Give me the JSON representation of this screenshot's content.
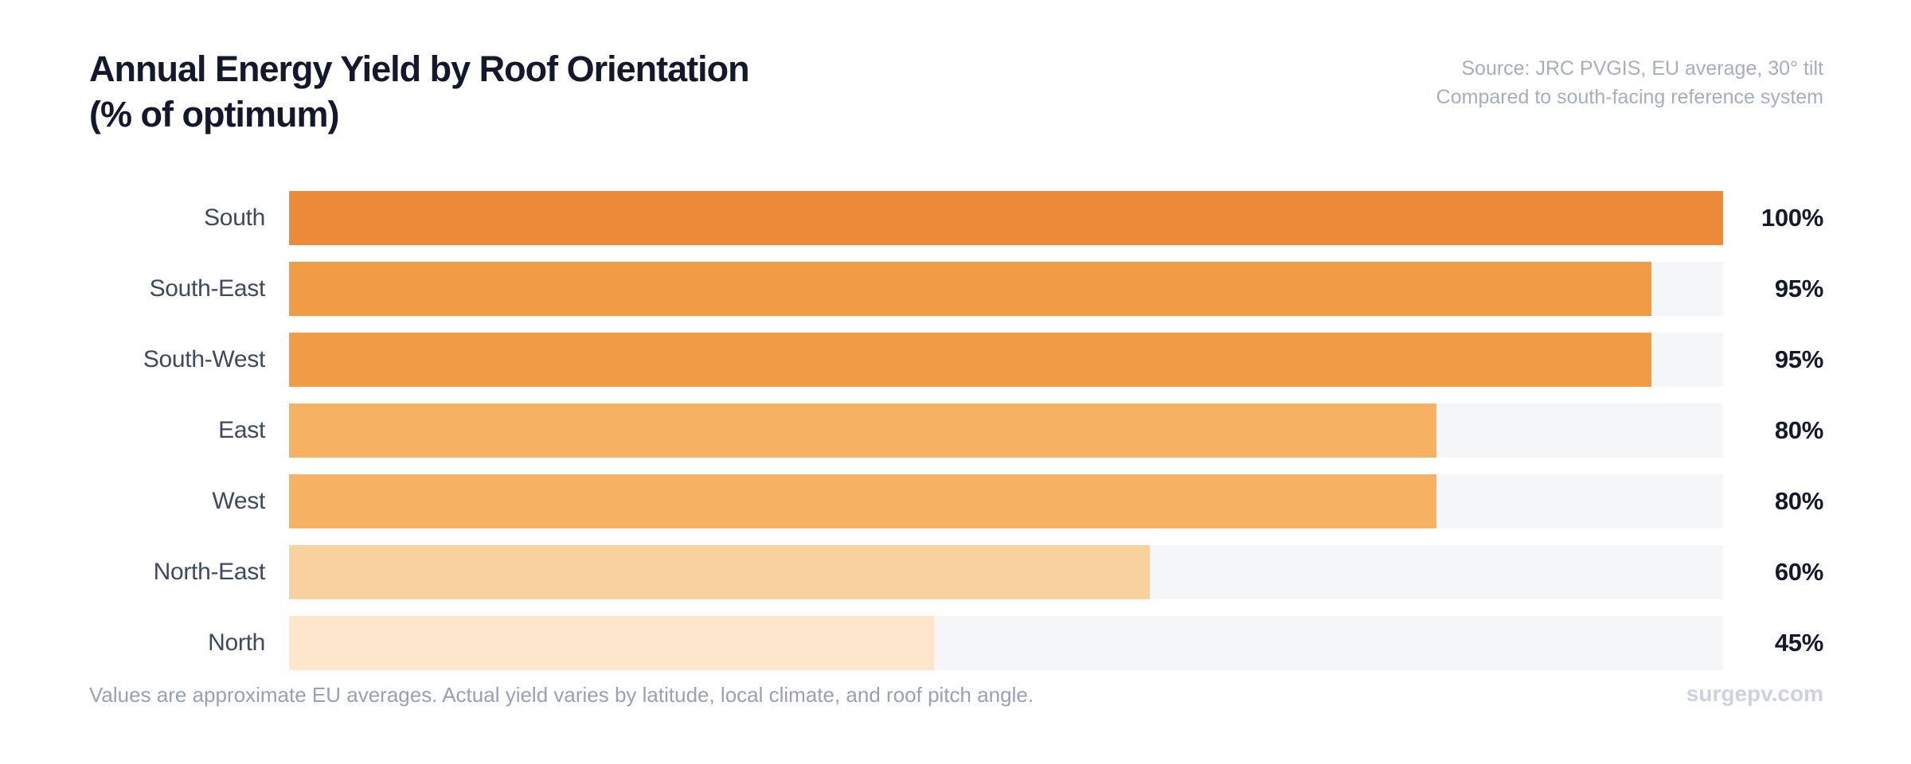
{
  "header": {
    "title_line1": "Annual Energy Yield by Roof Orientation",
    "title_line2": "(% of optimum)",
    "source_line1": "Source: JRC PVGIS, EU average, 30° tilt",
    "source_line2": "Compared to south-facing reference system"
  },
  "chart_data": {
    "type": "bar",
    "orientation": "horizontal",
    "title": "Annual Energy Yield by Roof Orientation (% of optimum)",
    "categories": [
      "South",
      "South-East",
      "South-West",
      "East",
      "West",
      "North-East",
      "North"
    ],
    "values": [
      100,
      95,
      95,
      80,
      80,
      60,
      45
    ],
    "value_labels": [
      "100%",
      "95%",
      "95%",
      "80%",
      "80%",
      "60%",
      "45%"
    ],
    "bar_colors": [
      "#ed8a38",
      "#f29b45",
      "#f29b45",
      "#f6b262",
      "#f6b262",
      "#f8d19c",
      "#fde6c9"
    ],
    "track_color": "#f5f6f8",
    "xlim": [
      0,
      100
    ],
    "grid": false,
    "legend": false,
    "xlabel": "",
    "ylabel": ""
  },
  "footer": {
    "note": "Values are approximate EU averages. Actual yield varies by latitude, local climate, and roof pitch angle.",
    "brand": "surgepv.com"
  }
}
